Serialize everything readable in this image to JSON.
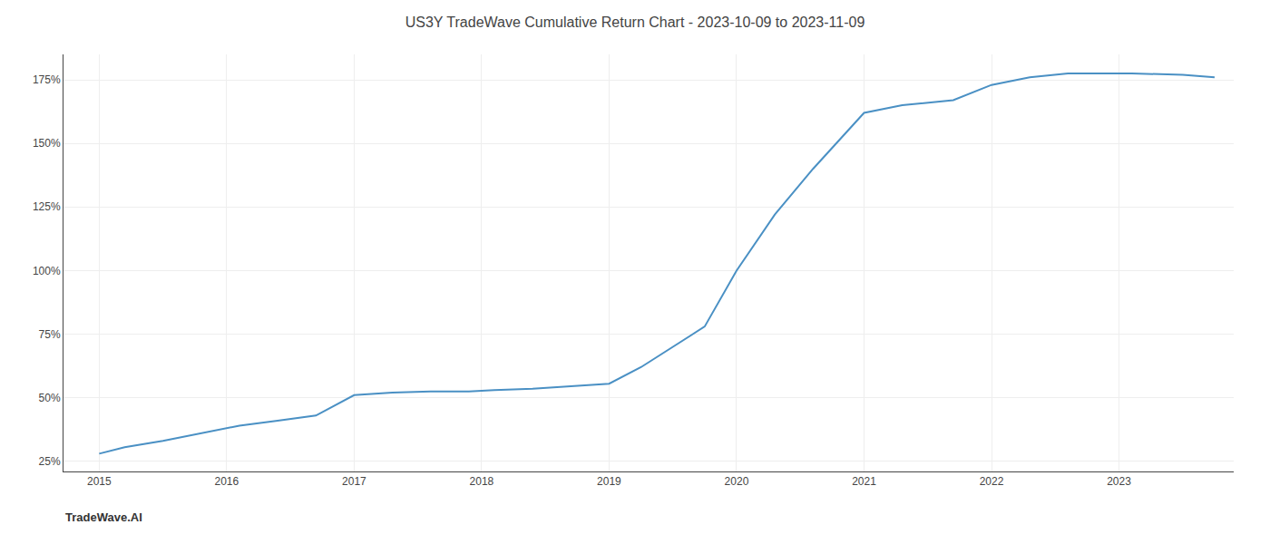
{
  "chart_data": {
    "type": "line",
    "title": "US3Y TradeWave Cumulative Return Chart - 2023-10-09 to 2023-11-09",
    "annotations": [
      "TradeWave.AI"
    ],
    "x": [
      2015.0,
      2015.2,
      2015.5,
      2015.8,
      2016.1,
      2016.4,
      2016.7,
      2017.0,
      2017.3,
      2017.6,
      2017.9,
      2018.1,
      2018.4,
      2018.7,
      2019.0,
      2019.25,
      2019.5,
      2019.75,
      2020.0,
      2020.3,
      2020.6,
      2021.0,
      2021.3,
      2021.7,
      2022.0,
      2022.3,
      2022.6,
      2022.9,
      2023.1,
      2023.5,
      2023.75
    ],
    "values": [
      0.28,
      0.305,
      0.33,
      0.36,
      0.39,
      0.41,
      0.43,
      0.51,
      0.52,
      0.525,
      0.525,
      0.53,
      0.535,
      0.545,
      0.555,
      0.62,
      0.7,
      0.78,
      1.0,
      1.22,
      1.4,
      1.62,
      1.65,
      1.67,
      1.73,
      1.76,
      1.775,
      1.775,
      1.775,
      1.77,
      1.76
    ],
    "color": "#4a90c4",
    "xlim": [
      2014.72,
      2023.9
    ],
    "xticks": [
      2015,
      2016,
      2017,
      2018,
      2019,
      2020,
      2021,
      2022,
      2023
    ],
    "ylim": [
      0.21,
      1.85
    ],
    "yticks": [
      {
        "value": 0.25,
        "label": "25%"
      },
      {
        "value": 0.5,
        "label": "50%"
      },
      {
        "value": 0.75,
        "label": "75%"
      },
      {
        "value": 1.0,
        "label": "100%"
      },
      {
        "value": 1.25,
        "label": "125%"
      },
      {
        "value": 1.5,
        "label": "150%"
      },
      {
        "value": 1.75,
        "label": "175%"
      }
    ],
    "grid": true
  }
}
